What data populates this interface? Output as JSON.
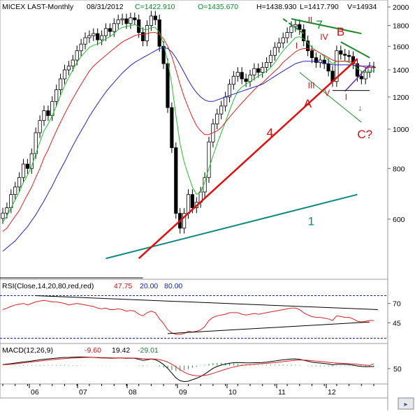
{
  "header": {
    "symbol": "MICEX LAST-Monthly",
    "date": "08/31/2012",
    "close": "C=1422.910",
    "open": "O=1435.670",
    "high": "H=1438.930",
    "low": "L=1417.790",
    "volume": "V=14934"
  },
  "chart_data": [
    {
      "type": "candlestick",
      "title": "MICEX LAST-Monthly",
      "x_ticks": [
        "06",
        "07",
        "08",
        "09",
        "10",
        "11",
        "12"
      ],
      "ylim": [
        430,
        2000
      ],
      "y_ticks": [
        600,
        800,
        1000,
        1200,
        1400,
        1600,
        1800,
        2000
      ],
      "grid": false,
      "series": [
        {
          "name": "Close",
          "values": [
            621,
            640,
            690,
            720,
            760,
            820,
            800,
            870,
            980,
            1050,
            1110,
            1080,
            1170,
            1250,
            1330,
            1400,
            1430,
            1480,
            1560,
            1620,
            1680,
            1700,
            1720,
            1660,
            1700,
            1770,
            1740,
            1820,
            1860,
            1870,
            1820,
            1880,
            1860,
            1730,
            1650,
            1800,
            1900,
            1860,
            1600,
            1450,
            1130,
            900,
            620,
            570,
            620,
            690,
            640,
            660,
            700,
            760,
            930,
            1030,
            1090,
            1140,
            1200,
            1290,
            1350,
            1380,
            1330,
            1310,
            1360,
            1410,
            1380,
            1420,
            1460,
            1520,
            1590,
            1630,
            1680,
            1730,
            1790,
            1810,
            1760,
            1650,
            1560,
            1500,
            1460,
            1480,
            1450,
            1390,
            1310,
            1560,
            1530,
            1520,
            1510,
            1450,
            1350,
            1330,
            1380,
            1420,
            1423
          ]
        },
        {
          "name": "MA fast",
          "values": [
            590,
            610,
            640,
            670,
            700,
            740,
            770,
            810,
            870,
            930,
            990,
            1030,
            1080,
            1140,
            1210,
            1280,
            1340,
            1400,
            1460,
            1510,
            1550,
            1590,
            1610,
            1620,
            1640,
            1670,
            1690,
            1720,
            1760,
            1780,
            1790,
            1800,
            1810,
            1790,
            1760,
            1760,
            1780,
            1780,
            1730,
            1620,
            1470,
            1290,
            1080,
            920,
            830,
            770,
            720,
            690,
            700,
            740,
            800,
            860,
            920,
            980,
            1040,
            1110,
            1180,
            1240,
            1270,
            1290,
            1310,
            1330,
            1350,
            1370,
            1390,
            1420,
            1460,
            1510,
            1560,
            1600,
            1640,
            1680,
            1690,
            1670,
            1630,
            1590,
            1560,
            1540,
            1510,
            1480,
            1450,
            1470,
            1470,
            1470,
            1460,
            1440,
            1410,
            1390,
            1380,
            1390,
            1390
          ]
        },
        {
          "name": "MA medium",
          "values": [
            560,
            570,
            590,
            610,
            630,
            660,
            690,
            720,
            760,
            800,
            850,
            890,
            940,
            990,
            1040,
            1090,
            1140,
            1190,
            1240,
            1290,
            1340,
            1390,
            1430,
            1460,
            1490,
            1520,
            1550,
            1580,
            1610,
            1640,
            1660,
            1680,
            1700,
            1710,
            1710,
            1720,
            1730,
            1730,
            1710,
            1670,
            1600,
            1510,
            1400,
            1290,
            1200,
            1130,
            1070,
            1020,
            990,
            970,
            970,
            980,
            990,
            1010,
            1040,
            1070,
            1100,
            1130,
            1160,
            1190,
            1220,
            1250,
            1280,
            1300,
            1330,
            1360,
            1390,
            1420,
            1460,
            1490,
            1520,
            1550,
            1570,
            1580,
            1580,
            1570,
            1560,
            1540,
            1520,
            1500,
            1480,
            1470,
            1470,
            1470,
            1470,
            1460,
            1440,
            1430,
            1420,
            1420,
            1420
          ]
        },
        {
          "name": "MA slow",
          "values": [
            500,
            510,
            520,
            530,
            545,
            560,
            575,
            595,
            615,
            640,
            665,
            695,
            725,
            760,
            795,
            830,
            870,
            910,
            950,
            990,
            1030,
            1075,
            1115,
            1155,
            1195,
            1235,
            1270,
            1305,
            1340,
            1375,
            1405,
            1435,
            1460,
            1480,
            1500,
            1520,
            1540,
            1560,
            1580,
            1590,
            1580,
            1550,
            1500,
            1440,
            1380,
            1320,
            1270,
            1230,
            1200,
            1180,
            1170,
            1170,
            1180,
            1190,
            1200,
            1210,
            1220,
            1230,
            1240,
            1250,
            1260,
            1270,
            1280,
            1290,
            1310,
            1330,
            1350,
            1370,
            1390,
            1410,
            1430,
            1450,
            1460,
            1470,
            1470,
            1470,
            1470,
            1460,
            1450,
            1450,
            1440,
            1440,
            1440,
            1440,
            1440,
            1440,
            1430,
            1430,
            1430,
            1430,
            1430
          ]
        }
      ],
      "trendlines": [
        {
          "label": "1",
          "from": [
            "08",
            480
          ],
          "to": [
            "12",
            690
          ],
          "color": "#0a8a82"
        },
        {
          "label": "4",
          "from": [
            "08",
            480
          ],
          "to": [
            "12",
            1490
          ],
          "color": "#e01010"
        },
        {
          "label": "7",
          "from": [
            "11",
            1870
          ],
          "to": [
            "12",
            1720
          ],
          "color": "#1a8a2a"
        }
      ],
      "annotations": [
        "II",
        "I",
        "III",
        "IV",
        "V",
        "I",
        "A",
        "B",
        "C?",
        "1",
        "4",
        "7"
      ]
    },
    {
      "type": "line",
      "title": "RSI(Close,14,20,80,red,red)",
      "current_values": [
        "47.75",
        "20.00",
        "80.00"
      ],
      "y_ticks": [
        45,
        70
      ],
      "series": [
        {
          "name": "RSI",
          "values": [
            62,
            64,
            66,
            68,
            69,
            70,
            68,
            70,
            72,
            73,
            74,
            73,
            72,
            72,
            71,
            70,
            68,
            69,
            70,
            69,
            68,
            67,
            66,
            64,
            63,
            64,
            62,
            62,
            63,
            62,
            60,
            61,
            60,
            56,
            54,
            58,
            60,
            58,
            50,
            44,
            36,
            32,
            30,
            30,
            31,
            34,
            33,
            34,
            36,
            40,
            48,
            52,
            54,
            55,
            56,
            58,
            58,
            58,
            56,
            55,
            56,
            57,
            56,
            57,
            58,
            59,
            60,
            61,
            62,
            63,
            64,
            64,
            62,
            58,
            55,
            53,
            52,
            52,
            51,
            50,
            48,
            54,
            53,
            52,
            52,
            50,
            47,
            46,
            47,
            48,
            47.75
          ]
        }
      ]
    },
    {
      "type": "line",
      "title": "MACD(12,26,9)",
      "current_values": [
        "-9.60",
        "19.42",
        "-29.01"
      ],
      "y_ticks": [
        50
      ],
      "series": [
        {
          "name": "MACD",
          "values": [
            10,
            15,
            20,
            26,
            32,
            38,
            42,
            48,
            54,
            60,
            66,
            70,
            74,
            78,
            82,
            85,
            86,
            88,
            90,
            91,
            90,
            88,
            85,
            82,
            80,
            80,
            78,
            78,
            80,
            80,
            76,
            78,
            76,
            66,
            55,
            60,
            68,
            62,
            40,
            10,
            -30,
            -80,
            -130,
            -160,
            -170,
            -165,
            -150,
            -135,
            -115,
            -90,
            -60,
            -30,
            -10,
            5,
            15,
            25,
            30,
            32,
            30,
            28,
            28,
            30,
            30,
            32,
            36,
            42,
            48,
            54,
            60,
            64,
            68,
            70,
            66,
            56,
            46,
            36,
            30,
            26,
            22,
            16,
            8,
            14,
            14,
            12,
            10,
            4,
            -4,
            -10,
            -12,
            -11,
            -9.6
          ]
        },
        {
          "name": "Signal",
          "values": [
            8,
            11,
            14,
            18,
            23,
            28,
            33,
            38,
            43,
            48,
            53,
            58,
            62,
            66,
            70,
            73,
            76,
            79,
            81,
            84,
            85,
            86,
            86,
            85,
            84,
            83,
            82,
            81,
            81,
            81,
            80,
            80,
            79,
            76,
            72,
            70,
            70,
            68,
            62,
            52,
            36,
            14,
            -14,
            -44,
            -70,
            -90,
            -102,
            -108,
            -109,
            -105,
            -96,
            -83,
            -68,
            -54,
            -40,
            -27,
            -16,
            -6,
            1,
            6,
            10,
            14,
            17,
            20,
            23,
            27,
            31,
            36,
            41,
            46,
            51,
            55,
            57,
            57,
            55,
            51,
            47,
            43,
            39,
            34,
            29,
            26,
            24,
            22,
            20,
            17,
            13,
            8,
            4,
            1,
            19.42
          ]
        }
      ]
    }
  ],
  "colors": {
    "up_candle": "#ffffff",
    "down_candle": "#000000",
    "ma_fast": "#20c030",
    "ma_medium": "#e02020",
    "ma_slow": "#2020c0",
    "trend_red": "#e01010",
    "trend_teal": "#0a8a82",
    "trend_green": "#1a8a2a"
  }
}
